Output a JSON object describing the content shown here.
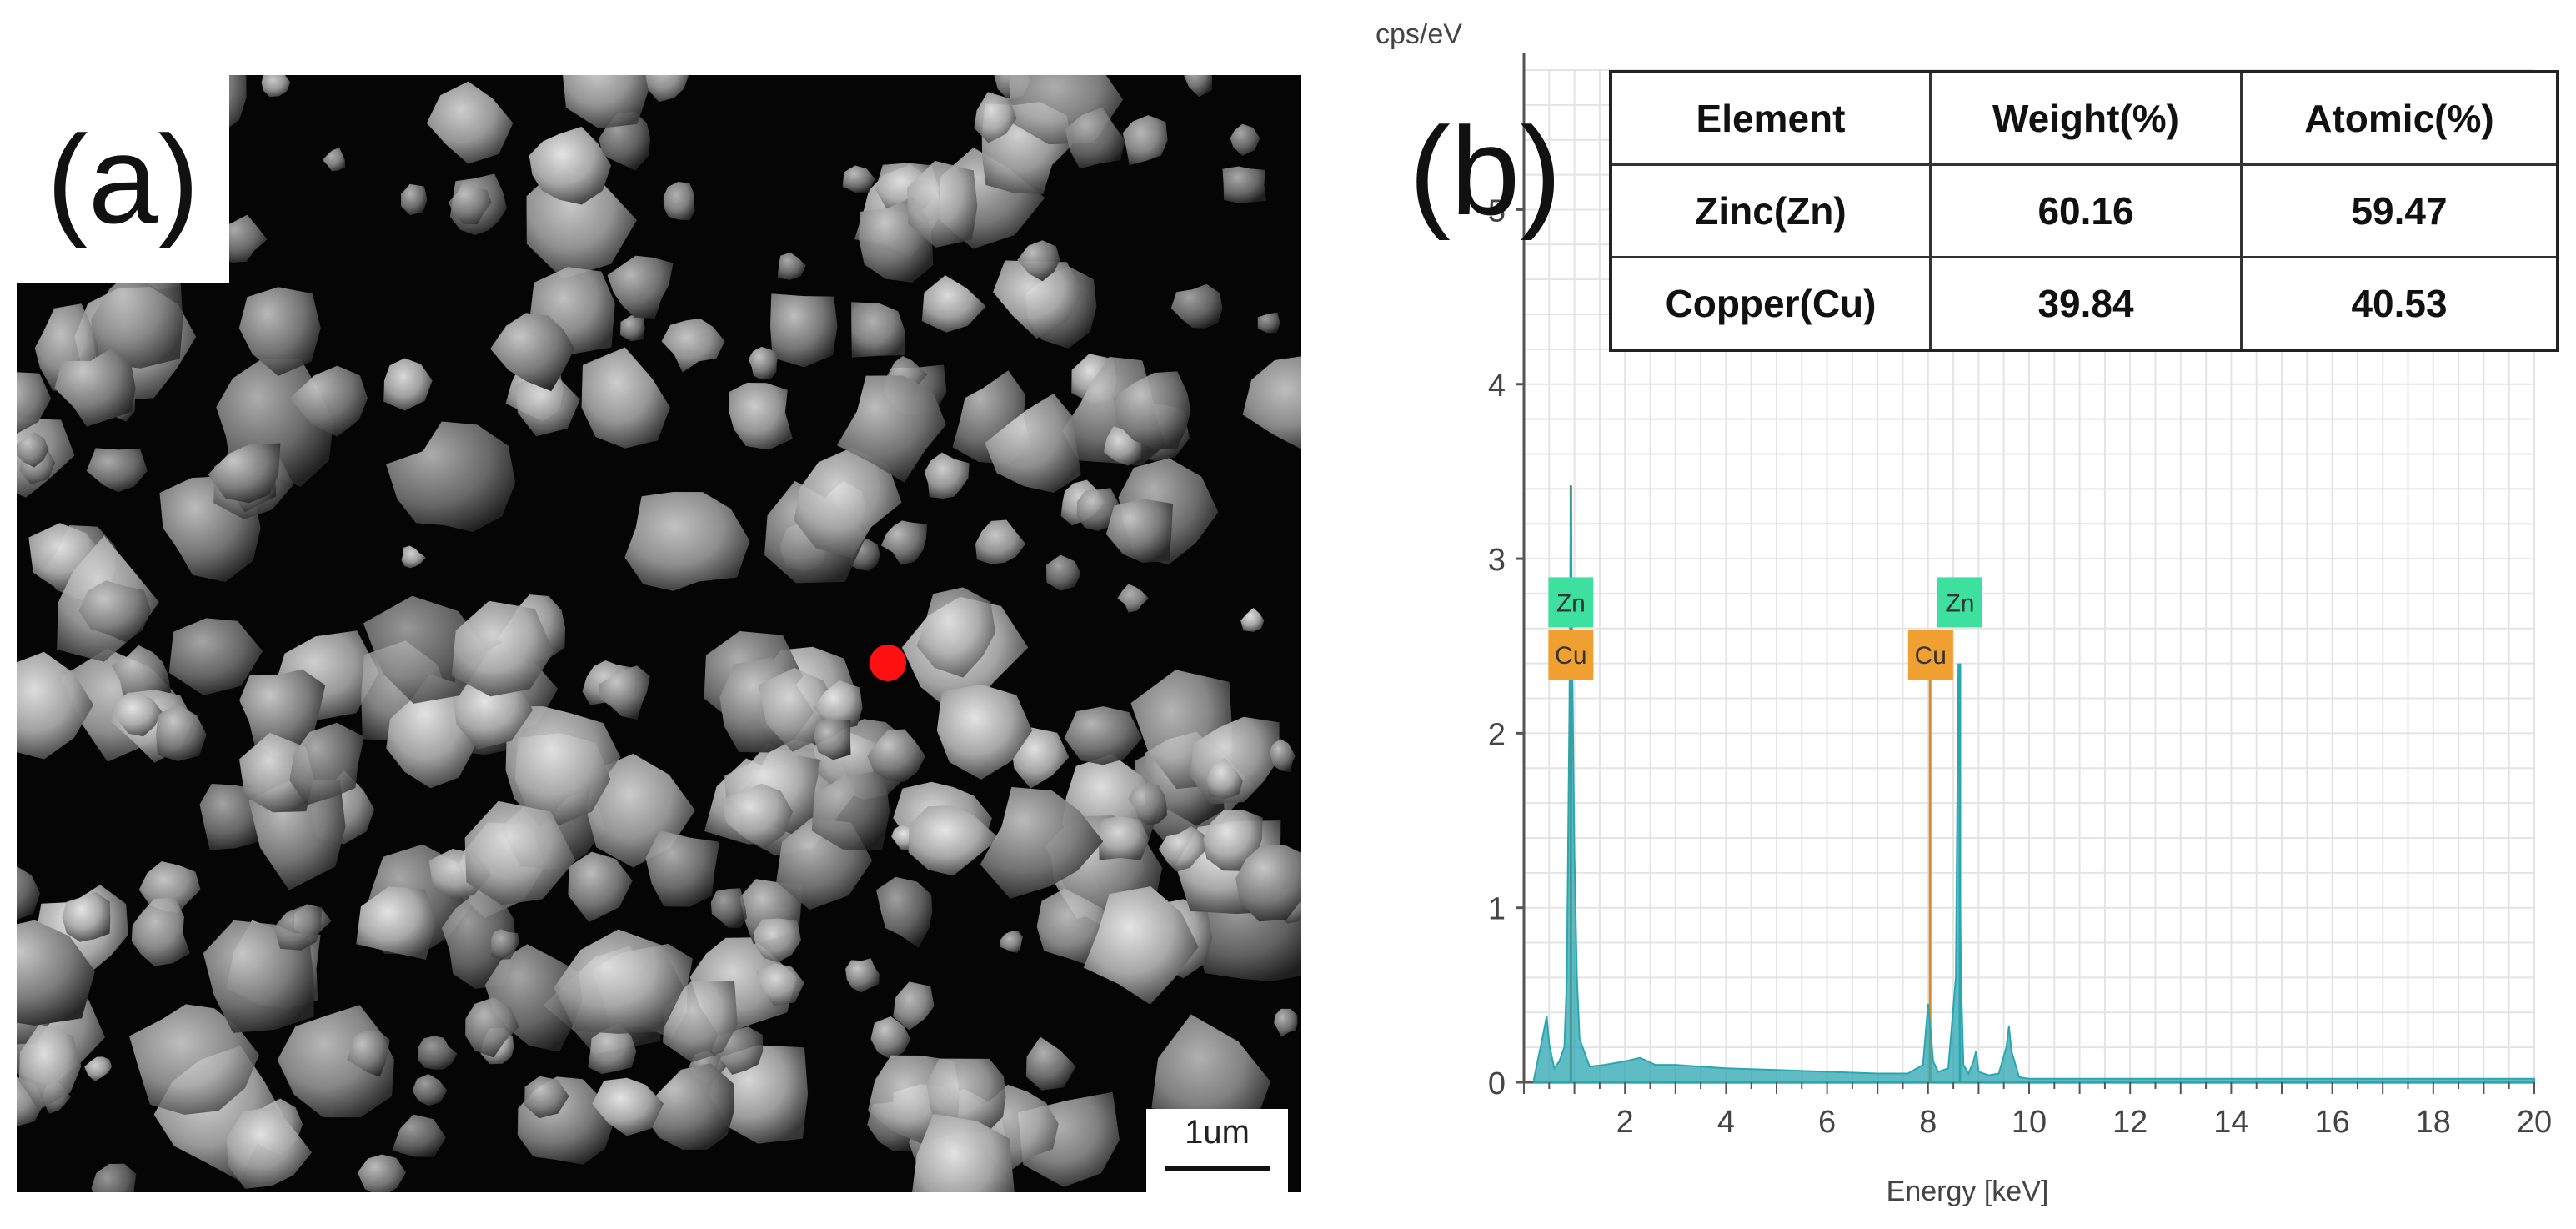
{
  "panel_a": {
    "label": "(a)",
    "scale_bar_label": "1um"
  },
  "panel_b": {
    "label": "(b)",
    "table": {
      "headers": [
        "Element",
        "Weight(%)",
        "Atomic(%)"
      ],
      "rows": [
        [
          "Zinc(Zn)",
          "60.16",
          "59.47"
        ],
        [
          "Copper(Cu)",
          "39.84",
          "40.53"
        ]
      ]
    }
  },
  "chart_data": {
    "type": "line",
    "xlabel": "Energy [keV]",
    "ylabel": "cps/eV",
    "xlim": [
      0,
      20
    ],
    "ylim": [
      0,
      5.8
    ],
    "xticks": [
      2,
      4,
      6,
      8,
      10,
      12,
      14,
      16,
      18,
      20
    ],
    "yticks": [
      0,
      1,
      2,
      3,
      4,
      5
    ],
    "grid": true,
    "series": [
      {
        "color": "#2aa6b0",
        "x": [
          0.2,
          0.4,
          0.45,
          0.5,
          0.6,
          0.7,
          0.8,
          0.85,
          0.9,
          0.93,
          0.96,
          1.0,
          1.05,
          1.1,
          1.3,
          1.6,
          2.0,
          2.3,
          2.6,
          3.0,
          3.5,
          4.0,
          5.0,
          6.0,
          7.0,
          7.6,
          7.9,
          8.0,
          8.05,
          8.1,
          8.2,
          8.4,
          8.55,
          8.6,
          8.65,
          8.7,
          8.8,
          8.9,
          8.95,
          9.0,
          9.2,
          9.4,
          9.55,
          9.6,
          9.65,
          9.8,
          10.0,
          12.0,
          14.0,
          16.0,
          18.0,
          20.0
        ],
        "y": [
          0.02,
          0.3,
          0.38,
          0.22,
          0.08,
          0.12,
          0.2,
          0.6,
          2.1,
          3.42,
          2.3,
          1.3,
          0.6,
          0.25,
          0.09,
          0.1,
          0.12,
          0.14,
          0.1,
          0.1,
          0.09,
          0.08,
          0.07,
          0.06,
          0.05,
          0.05,
          0.1,
          0.45,
          0.3,
          0.12,
          0.06,
          0.08,
          0.6,
          2.4,
          0.6,
          0.1,
          0.05,
          0.12,
          0.18,
          0.06,
          0.04,
          0.05,
          0.2,
          0.32,
          0.18,
          0.03,
          0.02,
          0.02,
          0.02,
          0.02,
          0.02,
          0.02
        ]
      }
    ],
    "peak_lines": [
      {
        "x": 0.93,
        "height": 3.42,
        "color": "#8a7a3a"
      },
      {
        "x": 8.04,
        "height": 2.35,
        "color": "#d98a2a"
      },
      {
        "x": 8.63,
        "height": 2.4,
        "color": "#2aa6b0"
      }
    ],
    "annotations": [
      {
        "text": "Zn",
        "x": 0.93,
        "y": 2.75,
        "color": "#3ee0a0"
      },
      {
        "text": "Cu",
        "x": 0.93,
        "y": 2.45,
        "color": "#f0a030"
      },
      {
        "text": "Zn",
        "x": 8.63,
        "y": 2.75,
        "color": "#3ee0a0"
      },
      {
        "text": "Cu",
        "x": 8.05,
        "y": 2.45,
        "color": "#f0a030"
      }
    ]
  }
}
